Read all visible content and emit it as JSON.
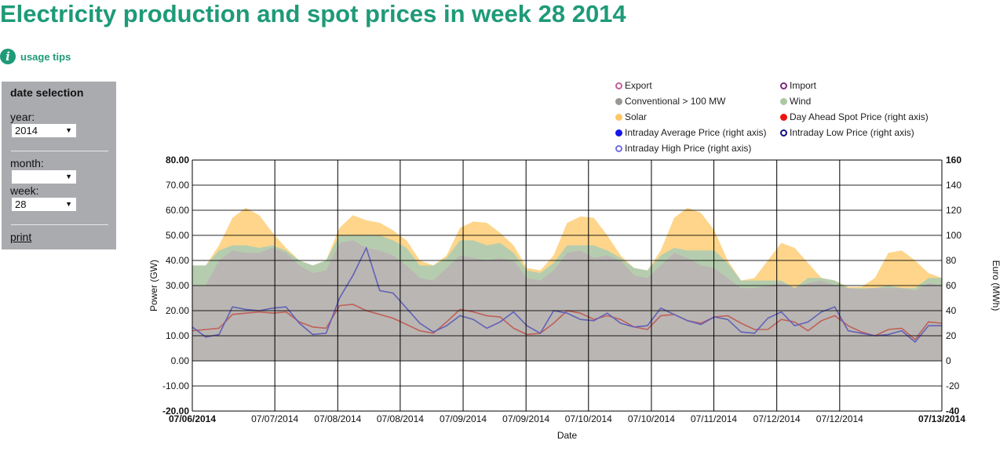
{
  "page": {
    "title": "Electricity production and spot prices in week 28 2014",
    "usage_tips": "usage tips"
  },
  "sidebar": {
    "heading": "date selection",
    "year_label": "year:",
    "year_value": "2014",
    "month_label": "month:",
    "month_value": "",
    "week_label": "week:",
    "week_value": "28",
    "print": "print",
    "arrow": "▼"
  },
  "legend": [
    {
      "label": "Export",
      "style": "ring",
      "color": "#c0609a"
    },
    {
      "label": "Import",
      "style": "ring",
      "color": "#7a2a7a"
    },
    {
      "label": "Conventional > 100 MW",
      "style": "fill",
      "color": "#999694"
    },
    {
      "label": "Wind",
      "style": "fill",
      "color": "#a9c9a2"
    },
    {
      "label": "Solar",
      "style": "fill",
      "color": "#ffc865"
    },
    {
      "label": "Day Ahead Spot Price (right axis)",
      "style": "fill",
      "color": "#ee1111"
    },
    {
      "label": "Intraday Average Price (right axis)",
      "style": "fill",
      "color": "#1515ee"
    },
    {
      "label": "Intraday Low Price (right axis)",
      "style": "ring",
      "color": "#101080"
    },
    {
      "label": "Intraday High Price (right axis)",
      "style": "ring",
      "color": "#7070dd"
    }
  ],
  "chart_data": {
    "type": "area",
    "xlabel": "Date",
    "ylabel": "Power (GW)",
    "y2label": "Euro (MWh)",
    "xlim_hours": [
      0,
      168
    ],
    "ylim": [
      -20,
      80
    ],
    "y2lim": [
      -40,
      160
    ],
    "yticks": [
      "80.00",
      "70.00",
      "60.00",
      "50.00",
      "40.00",
      "30.00",
      "20.00",
      "10.00",
      "0.00",
      "-10.00",
      "-20.00"
    ],
    "y2ticks": [
      "160",
      "140",
      "120",
      "100",
      "80",
      "60",
      "40",
      "20",
      "0",
      "-20",
      "-40"
    ],
    "xticks": [
      {
        "h": 0,
        "label": "07/06/2014",
        "bold": true
      },
      {
        "h": 18.5,
        "label": "07/07/2014"
      },
      {
        "h": 32.6,
        "label": "07/08/2014"
      },
      {
        "h": 46.6,
        "label": "07/08/2014"
      },
      {
        "h": 60.7,
        "label": "07/09/2014"
      },
      {
        "h": 74.8,
        "label": "07/09/2014"
      },
      {
        "h": 88.8,
        "label": "07/10/2014"
      },
      {
        "h": 102.9,
        "label": "07/10/2014"
      },
      {
        "h": 116.9,
        "label": "07/11/2014"
      },
      {
        "h": 131,
        "label": "07/12/2014"
      },
      {
        "h": 145.1,
        "label": "07/12/2014"
      },
      {
        "h": 168,
        "label": "07/13/2014",
        "bold": true
      }
    ],
    "x_hours_step": 3,
    "series": [
      {
        "name": "Solar",
        "axis": "left",
        "kind": "area",
        "color": "#fed58a",
        "values": [
          38,
          38,
          46,
          57,
          61,
          58,
          51,
          45,
          40,
          38,
          40,
          53,
          58,
          56,
          55,
          52,
          48,
          40,
          38,
          42,
          53,
          55.5,
          55,
          51,
          46,
          37,
          36,
          42,
          55,
          57.5,
          57,
          50,
          42,
          37,
          36,
          44,
          57,
          61,
          59,
          52,
          40,
          32,
          33,
          40,
          47,
          45,
          39,
          33,
          32,
          29.5,
          29.5,
          33,
          43,
          44,
          40,
          35,
          33
        ]
      },
      {
        "name": "Wind",
        "axis": "left",
        "kind": "area",
        "color": "#b5cdae",
        "values": [
          38,
          38,
          44,
          46,
          46,
          45,
          46,
          44,
          40,
          38,
          40,
          50,
          50,
          50,
          50,
          48,
          45,
          38,
          38,
          41,
          48,
          48,
          46,
          47,
          43,
          36,
          35,
          39,
          46,
          46,
          46,
          44,
          41,
          37,
          36,
          42,
          45,
          44,
          44,
          44,
          39,
          32,
          32,
          32,
          32,
          29,
          33,
          33,
          32,
          29,
          29,
          29,
          30,
          29,
          29,
          33,
          33
        ]
      },
      {
        "name": "Conventional > 100 MW",
        "axis": "left",
        "kind": "area",
        "color": "#bab6b3",
        "values": [
          30,
          30,
          40,
          44,
          43,
          43,
          45,
          43,
          38,
          35,
          36,
          47,
          48,
          45,
          44,
          42,
          38,
          33,
          32,
          37,
          42,
          41,
          40,
          41,
          40,
          33,
          32,
          36,
          43,
          44,
          41,
          42,
          40,
          34,
          33,
          38,
          43,
          41,
          38,
          37,
          33,
          29,
          29,
          30,
          31,
          29,
          31,
          32,
          30,
          29,
          28.5,
          29,
          29,
          29,
          28,
          31,
          30
        ]
      },
      {
        "name": "Day Ahead Spot Price (right axis)",
        "axis": "right",
        "kind": "line",
        "color": "#c0605a",
        "values": [
          24,
          25,
          26,
          37,
          38,
          39,
          38,
          39,
          31,
          27,
          26,
          44,
          45,
          40,
          37,
          34,
          29,
          24,
          22,
          31,
          41,
          39,
          36,
          35,
          26,
          21,
          22,
          30,
          40,
          38,
          33,
          36,
          33,
          27,
          25,
          36,
          37,
          32,
          30,
          35,
          36,
          30,
          25,
          25,
          33,
          31,
          24,
          32,
          36,
          28,
          23,
          20,
          25,
          26,
          17,
          31,
          30
        ]
      },
      {
        "name": "Intraday Average Price (right axis)",
        "axis": "right",
        "kind": "line",
        "color": "#6262b8",
        "values": [
          27,
          19,
          21,
          43,
          41,
          40,
          42,
          43,
          30,
          21,
          22,
          50,
          68,
          90,
          56,
          54,
          42,
          30,
          23,
          28,
          36,
          33,
          26,
          31,
          39,
          28,
          22,
          40,
          38,
          33,
          32,
          38,
          30,
          27,
          28,
          42,
          37,
          32,
          29,
          35,
          33,
          23,
          22,
          34,
          39,
          28,
          31,
          39,
          43,
          24,
          22,
          20,
          21,
          24,
          15,
          28,
          28
        ]
      }
    ]
  }
}
